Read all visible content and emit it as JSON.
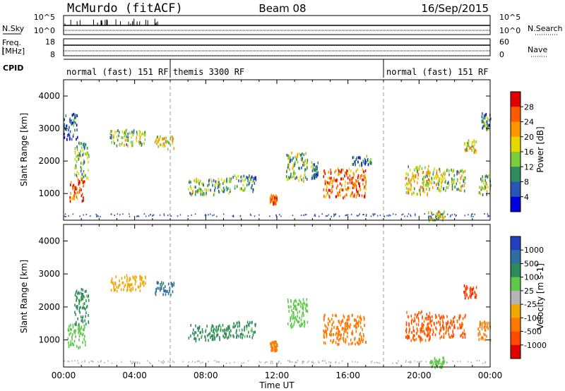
{
  "header": {
    "station": "McMurdo (fitACF)",
    "beam": "Beam 08",
    "date": "16/Sep/2015"
  },
  "strip": {
    "nsky_label": "N.Sky",
    "nsearch_label": "N.Search",
    "freq_label_1": "Freq.",
    "freq_label_2": "[MHz]",
    "nave_label": "Nave",
    "cpid_label": "CPID",
    "left_ticks_top": [
      "10^5",
      "10^0"
    ],
    "right_ticks_top": [
      "10^5",
      "10^0"
    ],
    "left_ticks_freq": [
      "18",
      "8"
    ],
    "right_ticks_nave": [
      "60",
      "0"
    ],
    "cpid_segments": [
      {
        "label": "normal (fast) 151 RF",
        "start": 0,
        "end": 6
      },
      {
        "label": "themis 3300 RF",
        "start": 6,
        "end": 18
      },
      {
        "label": "normal (fast) 151 RF",
        "start": 18,
        "end": 24
      }
    ]
  },
  "chart_data": [
    {
      "type": "heatmap",
      "title": "",
      "xlabel": "Time UT",
      "ylabel": "Slant Range [km]",
      "xlim": [
        0,
        24
      ],
      "ylim": [
        180,
        4500
      ],
      "x_ticks": [
        "00:00",
        "04:00",
        "08:00",
        "12:00",
        "16:00",
        "20:00",
        "00:00"
      ],
      "y_ticks": [
        "1000",
        "2000",
        "3000",
        "4000"
      ],
      "colorbar": {
        "label": "Power [dB]",
        "ticks": [
          "4",
          "8",
          "12",
          "16",
          "20",
          "24",
          "28"
        ],
        "colors": [
          "#0000dd",
          "#2a55b4",
          "#2f8c5e",
          "#7ccd3a",
          "#e6d700",
          "#ff9600",
          "#ff5a00",
          "#e00000"
        ]
      },
      "echoes": [
        {
          "t": [
            0.3,
            1.2
          ],
          "r": [
            800,
            1500
          ],
          "v": 26
        },
        {
          "t": [
            0.6,
            1.4
          ],
          "r": [
            1500,
            2600
          ],
          "v": 12
        },
        {
          "t": [
            0.0,
            0.8
          ],
          "r": [
            2700,
            3500
          ],
          "v": 7
        },
        {
          "t": [
            2.6,
            4.6
          ],
          "r": [
            2500,
            3000
          ],
          "v": 14
        },
        {
          "t": [
            5.1,
            6.2
          ],
          "r": [
            2400,
            2800
          ],
          "v": 18
        },
        {
          "t": [
            7.0,
            9.4
          ],
          "r": [
            1000,
            1500
          ],
          "v": 13
        },
        {
          "t": [
            9.5,
            10.8
          ],
          "r": [
            1100,
            1600
          ],
          "v": 11
        },
        {
          "t": [
            11.6,
            12.0
          ],
          "r": [
            700,
            1000
          ],
          "v": 24
        },
        {
          "t": [
            12.5,
            13.7
          ],
          "r": [
            1400,
            2300
          ],
          "v": 14
        },
        {
          "t": [
            13.9,
            14.3
          ],
          "r": [
            1500,
            2000
          ],
          "v": 9
        },
        {
          "t": [
            14.6,
            17.0
          ],
          "r": [
            900,
            1800
          ],
          "v": 25
        },
        {
          "t": [
            16.2,
            17.3
          ],
          "r": [
            1900,
            2200
          ],
          "v": 8
        },
        {
          "t": [
            19.2,
            20.6
          ],
          "r": [
            1000,
            1900
          ],
          "v": 19
        },
        {
          "t": [
            20.4,
            22.6
          ],
          "r": [
            1100,
            1800
          ],
          "v": 15
        },
        {
          "t": [
            22.5,
            23.2
          ],
          "r": [
            2300,
            2700
          ],
          "v": 17
        },
        {
          "t": [
            20.5,
            21.4
          ],
          "r": [
            200,
            500
          ],
          "v": 14
        },
        {
          "t": [
            23.3,
            24.0
          ],
          "r": [
            1000,
            1600
          ],
          "v": 13
        },
        {
          "t": [
            23.5,
            24.0
          ],
          "r": [
            3000,
            3500
          ],
          "v": 11
        }
      ]
    },
    {
      "type": "heatmap",
      "title": "",
      "xlabel": "Time UT",
      "ylabel": "Slant Range [km]",
      "xlim": [
        0,
        24
      ],
      "ylim": [
        180,
        4500
      ],
      "x_ticks": [
        "00:00",
        "04:00",
        "08:00",
        "12:00",
        "16:00",
        "20:00",
        "00:00"
      ],
      "y_ticks": [
        "1000",
        "2000",
        "3000",
        "4000"
      ],
      "colorbar": {
        "label": "Velocity [m s-1]",
        "ticks": [
          "1000",
          "500",
          "100",
          "25",
          "-25",
          "-100",
          "-500",
          "-1000"
        ],
        "colors": [
          "#2040c0",
          "#2e6ea5",
          "#2e8a5a",
          "#5ec84a",
          "#b4b4b4",
          "#f0a800",
          "#ff7800",
          "#ff4a00",
          "#e00000"
        ]
      },
      "echoes": [
        {
          "t": [
            0.2,
            1.2
          ],
          "r": [
            800,
            1500
          ],
          "v": 60
        },
        {
          "t": [
            0.6,
            1.4
          ],
          "r": [
            1500,
            2600
          ],
          "v": 150
        },
        {
          "t": [
            2.6,
            4.6
          ],
          "r": [
            2500,
            3000
          ],
          "v": -60
        },
        {
          "t": [
            5.1,
            6.2
          ],
          "r": [
            2400,
            2800
          ],
          "v": 700
        },
        {
          "t": [
            7.0,
            9.4
          ],
          "r": [
            1000,
            1500
          ],
          "v": 150
        },
        {
          "t": [
            9.5,
            10.8
          ],
          "r": [
            1100,
            1600
          ],
          "v": 150
        },
        {
          "t": [
            11.6,
            12.0
          ],
          "r": [
            700,
            1000
          ],
          "v": -150
        },
        {
          "t": [
            12.5,
            13.7
          ],
          "r": [
            1400,
            2300
          ],
          "v": 60
        },
        {
          "t": [
            14.6,
            17.0
          ],
          "r": [
            900,
            1800
          ],
          "v": -300
        },
        {
          "t": [
            19.2,
            20.6
          ],
          "r": [
            1000,
            1900
          ],
          "v": -600
        },
        {
          "t": [
            20.4,
            22.6
          ],
          "r": [
            1100,
            1800
          ],
          "v": -600
        },
        {
          "t": [
            22.5,
            23.2
          ],
          "r": [
            2300,
            2700
          ],
          "v": -800
        },
        {
          "t": [
            20.5,
            21.4
          ],
          "r": [
            200,
            500
          ],
          "v": 60
        },
        {
          "t": [
            23.3,
            24.0
          ],
          "r": [
            1000,
            1600
          ],
          "v": -200
        }
      ]
    }
  ]
}
